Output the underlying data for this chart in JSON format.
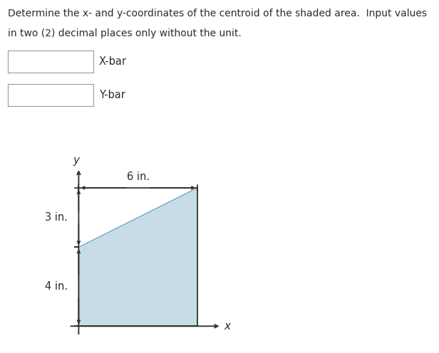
{
  "title_line1": "Determine the x- and y-coordinates of the centroid of the shaded area.  Input values",
  "title_line2": "in two (2) decimal places only without the unit.",
  "label_xbar": "X-bar",
  "label_ybar": "Y-bar",
  "shade_color": "#c8dce8",
  "shade_edge_color": "#7aaabb",
  "background_color": "#ffffff",
  "text_color": "#2c2c2c",
  "box_edge_color": "#999999",
  "arrow_color": "#2c2c2c",
  "fontsize_title": 10.0,
  "fontsize_labels": 10.5,
  "fontsize_dims": 10.5,
  "fontsize_axis": 11
}
